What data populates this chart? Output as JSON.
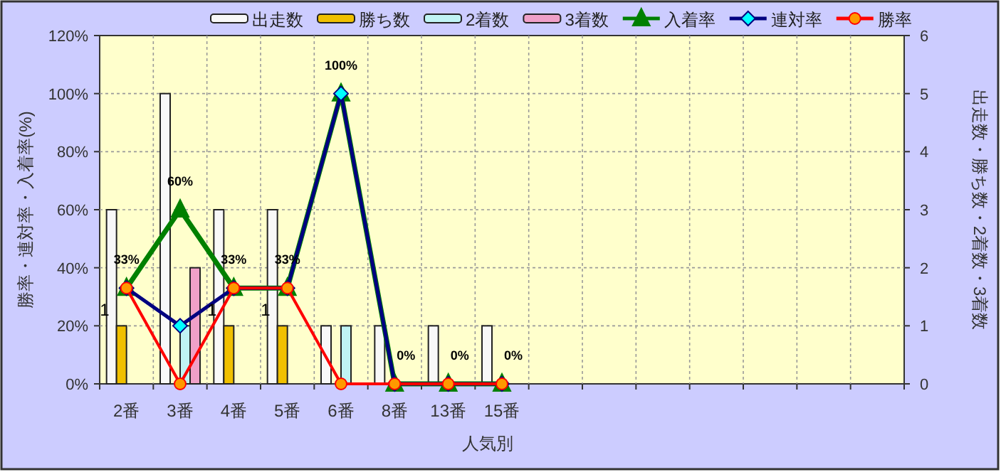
{
  "chart_data": {
    "type": "bar",
    "xlabel": "人気別",
    "ylabel": "勝率・連対率・入着率(%)",
    "y2label": "出走数・勝ち数・2着数・3着数",
    "categories": [
      "2番",
      "3番",
      "4番",
      "5番",
      "6番",
      "8番",
      "13番",
      "15番",
      null,
      null,
      null,
      null,
      null,
      null,
      null
    ],
    "series": [
      {
        "name": "出走数",
        "axis": "y2",
        "color": "#f8f8f8",
        "values": [
          3,
          5,
          3,
          3,
          1,
          1,
          1,
          1,
          null,
          null,
          null,
          null,
          null,
          null,
          null
        ]
      },
      {
        "name": "勝ち数",
        "axis": "y2",
        "color": "#f0c000",
        "values": [
          1,
          0,
          1,
          1,
          0,
          0,
          0,
          0,
          null,
          null,
          null,
          null,
          null,
          null,
          null
        ],
        "value_labels": [
          "1",
          null,
          "1",
          "1",
          null,
          null,
          null,
          null,
          null,
          null,
          null,
          null,
          null,
          null,
          null
        ]
      },
      {
        "name": "2着数",
        "axis": "y2",
        "color": "#c0f4f4",
        "values": [
          0,
          1,
          0,
          0,
          1,
          0,
          0,
          0,
          null,
          null,
          null,
          null,
          null,
          null,
          null
        ]
      },
      {
        "name": "3着数",
        "axis": "y2",
        "color": "#f0a0c8",
        "values": [
          0,
          2,
          0,
          0,
          0,
          0,
          0,
          0,
          null,
          null,
          null,
          null,
          null,
          null,
          null
        ]
      },
      {
        "name": "入着率",
        "type": "line",
        "color": "#008000",
        "marker": "triangle",
        "values": [
          33,
          60,
          33,
          33,
          100,
          0,
          0,
          0,
          null,
          null,
          null,
          null,
          null,
          null,
          null
        ],
        "value_labels": [
          "33%",
          "60%",
          "33%",
          "33%",
          "100%",
          "0%",
          "0%",
          "0%",
          null,
          null,
          null,
          null,
          null,
          null,
          null
        ]
      },
      {
        "name": "連対率",
        "type": "line",
        "color": "#000080",
        "marker": "diamond",
        "values": [
          33,
          20,
          33,
          33,
          100,
          0,
          0,
          0,
          null,
          null,
          null,
          null,
          null,
          null,
          null
        ]
      },
      {
        "name": "勝率",
        "type": "line",
        "color": "#ff0000",
        "marker": "circle",
        "values": [
          33,
          0,
          33,
          33,
          0,
          0,
          0,
          0,
          null,
          null,
          null,
          null,
          null,
          null,
          null
        ]
      }
    ],
    "ylim": [
      0,
      120
    ],
    "yticks": [
      {
        "value": 0,
        "label": "0%"
      },
      {
        "value": 20,
        "label": "20%"
      },
      {
        "value": 40,
        "label": "40%"
      },
      {
        "value": 60,
        "label": "60%"
      },
      {
        "value": 80,
        "label": "80%"
      },
      {
        "value": 100,
        "label": "100%"
      },
      {
        "value": 120,
        "label": "120%"
      }
    ],
    "y2lim": [
      0,
      6
    ],
    "y2ticks": [
      0,
      1,
      2,
      3,
      4,
      5,
      6
    ],
    "grid": true,
    "legend": "top"
  }
}
